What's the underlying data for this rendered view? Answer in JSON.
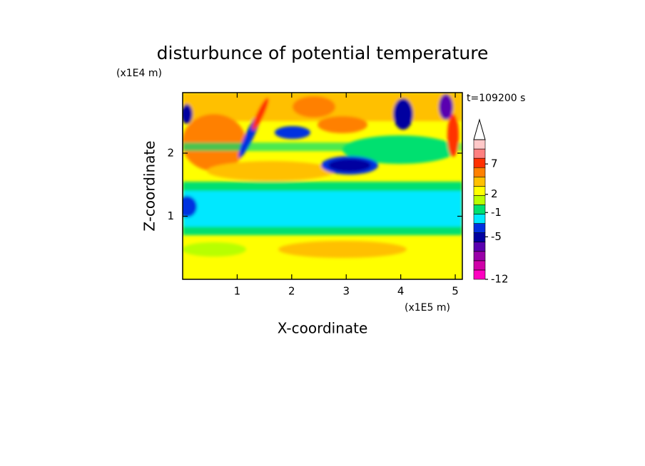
{
  "chart_data": {
    "type": "contour",
    "title": "disturbunce of potential temperature",
    "x_label": "X-coordinate",
    "y_label": "Z-coordinate",
    "x_unit": "(x1E5 m)",
    "y_unit": "(x1E4 m)",
    "annotation": "t=109200 s",
    "xlim": [
      0,
      5.13
    ],
    "xticks": [
      1,
      2,
      3,
      4,
      5
    ],
    "ylim": [
      0,
      2.96
    ],
    "yticks": [
      1,
      2
    ],
    "colorbar": {
      "clim": [
        -12,
        11
      ],
      "ticks": [
        -12,
        -5,
        -1,
        2,
        7
      ],
      "colors": [
        "#ff00c0",
        "#d000a8",
        "#9a00a8",
        "#5a00b0",
        "#0000a0",
        "#0030e0",
        "#00e8ff",
        "#00e070",
        "#b8ff00",
        "#ffff00",
        "#ffc000",
        "#ff8000",
        "#ff3000",
        "#ff8080",
        "#ffc8c8"
      ],
      "extend_top": true
    }
  }
}
